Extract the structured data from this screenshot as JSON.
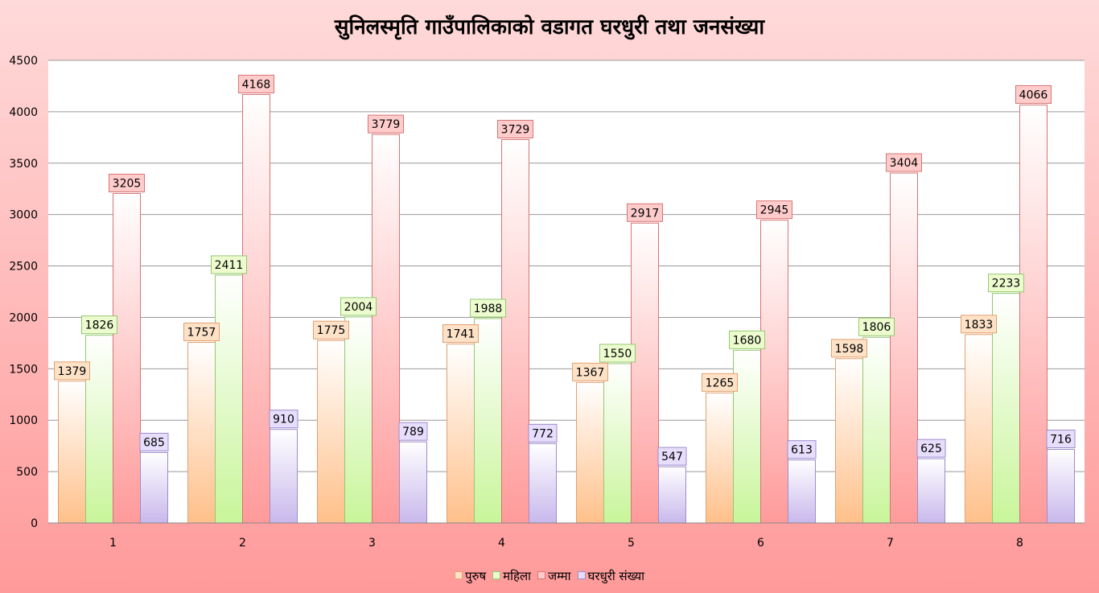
{
  "chart_data": {
    "type": "bar",
    "title": "सुनिलस्मृति गाउँपालिकाको वडागत घरधुरी तथा जनसंख्या",
    "xlabel": "",
    "ylabel": "",
    "categories": [
      "1",
      "2",
      "3",
      "4",
      "5",
      "6",
      "7",
      "8"
    ],
    "ylim": [
      0,
      4500
    ],
    "yticks": [
      0,
      500,
      1000,
      1500,
      2000,
      2500,
      3000,
      3500,
      4000,
      4500
    ],
    "grid": true,
    "legend_position": "bottom",
    "series": [
      {
        "name": "पुरुष",
        "values": [
          1379,
          1757,
          1775,
          1741,
          1367,
          1265,
          1598,
          1833
        ],
        "color": "#ffc08a",
        "label_bg": "#fde2c8",
        "label_border": "#e4a070"
      },
      {
        "name": "महिला",
        "values": [
          1826,
          2411,
          2004,
          1988,
          1550,
          1680,
          1806,
          2233
        ],
        "color": "#c8f59a",
        "label_bg": "#ecfccf",
        "label_border": "#94c870"
      },
      {
        "name": "जम्मा",
        "values": [
          3205,
          4168,
          3779,
          3729,
          2917,
          2945,
          3404,
          4066
        ],
        "color": "#ff9a9a",
        "label_bg": "#ffcccc",
        "label_border": "#d87474"
      },
      {
        "name": "घरधुरी संख्या",
        "values": [
          685,
          910,
          789,
          772,
          547,
          613,
          625,
          716
        ],
        "color": "#c8b8ec",
        "label_bg": "#e6defc",
        "label_border": "#9e8ccc"
      }
    ]
  }
}
